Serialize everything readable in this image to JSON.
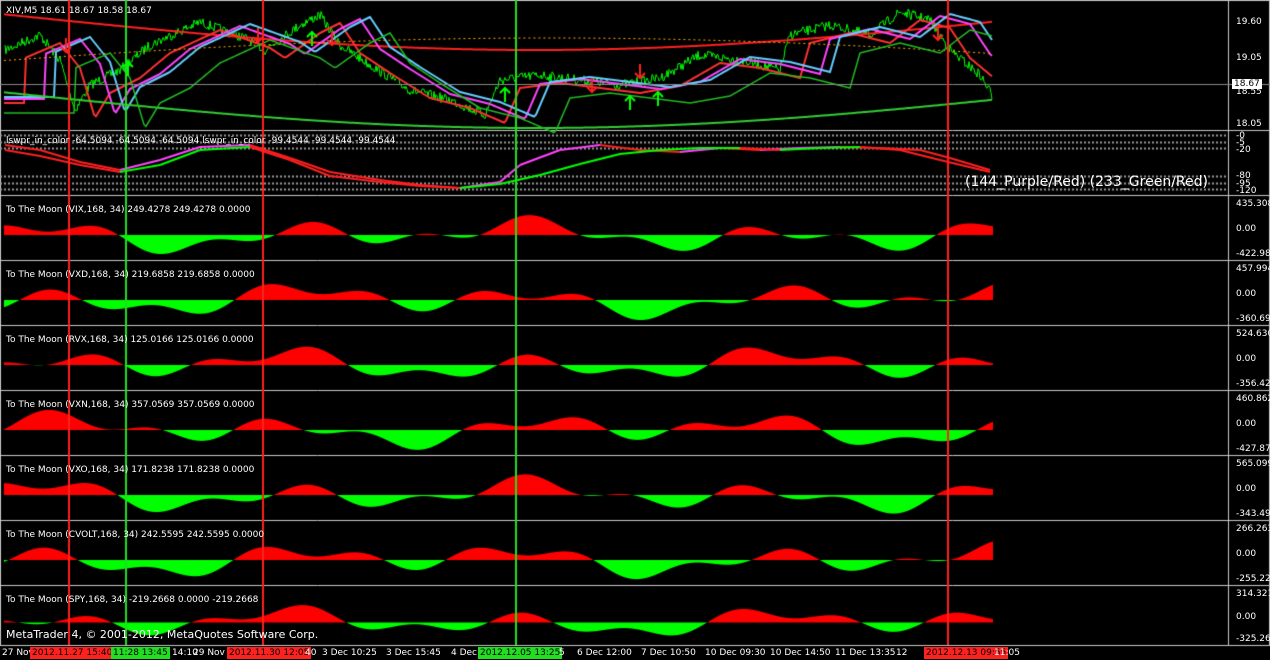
{
  "main": {
    "title": "XIV,M5 18.61 18.67 18.58 18.67",
    "price_labels": [
      "19.60",
      "19.05",
      "18.55",
      "18.05"
    ],
    "current_price": "18.67"
  },
  "wpr": {
    "title": "lswpr_in_color -64.5094 -64.5094 -64.5094  lswpr_in_color -99.4544 -99.4544 -99.4544",
    "scale_labels": [
      "-0",
      "-5",
      "-20",
      "-80",
      "-95",
      "-120"
    ],
    "legend": "(144_Purple/Red)  (233_Green/Red)"
  },
  "panes": [
    {
      "title": "To The Moon (VIX,168, 34) 249.4278 249.4278 0.0000",
      "top": "435.308",
      "mid": "0.00",
      "bot": "-422.981"
    },
    {
      "title": "To The Moon (VXD,168, 34) 219.6858 219.6858 0.0000",
      "top": "457.994",
      "mid": "0.00",
      "bot": "-360.691"
    },
    {
      "title": "To The Moon (RVX,168, 34) 125.0166 125.0166 0.0000",
      "top": "524.630",
      "mid": "0.00",
      "bot": "-356.429"
    },
    {
      "title": "To The Moon (VXN,168, 34) 357.0569 357.0569 0.0000",
      "top": "460.862",
      "mid": "0.00",
      "bot": "-427.870"
    },
    {
      "title": "To The Moon (VXO,168, 34) 171.8238 171.8238 0.0000",
      "top": "565.099",
      "mid": "0.00",
      "bot": "-343.499"
    },
    {
      "title": "To The Moon (CVOLT,168, 34) 242.5595 242.5595 0.0000",
      "top": "266.263",
      "mid": "0.00",
      "bot": "-255.221"
    },
    {
      "title": "To The Moon (SPY,168, 34) -219.2668 0.0000 -219.2668",
      "top": "314.321",
      "mid": "0.00",
      "bot": "-325.268"
    }
  ],
  "time_axis": [
    {
      "text": "27 Nov",
      "hl": ""
    },
    {
      "text": "2012.11.27 15:40",
      "hl": "#ff2020"
    },
    {
      "text": "11:28 13:45",
      "hl": "#22dd22"
    },
    {
      "text": "14:10",
      "hl": ""
    },
    {
      "text": "29 Nov",
      "hl": ""
    },
    {
      "text": "2012.11.30 12:05",
      "hl": "#ff2020"
    },
    {
      "text": "40",
      "hl": ""
    },
    {
      "text": "3 Dec 10:25",
      "hl": ""
    },
    {
      "text": "3 Dec 15:45",
      "hl": ""
    },
    {
      "text": "4 Dec",
      "hl": ""
    },
    {
      "text": "2012.12.05 13:25",
      "hl": "#22dd22"
    },
    {
      "text": "5",
      "hl": ""
    },
    {
      "text": "6 Dec 12:00",
      "hl": ""
    },
    {
      "text": "7 Dec 10:50",
      "hl": ""
    },
    {
      "text": "10 Dec 09:30",
      "hl": ""
    },
    {
      "text": "10 Dec 14:50",
      "hl": ""
    },
    {
      "text": "11 Dec 13:35",
      "hl": ""
    },
    {
      "text": "12",
      "hl": ""
    },
    {
      "text": "2012.12.13 09:55",
      "hl": "#ff2020"
    },
    {
      "text": "11:05",
      "hl": ""
    }
  ],
  "copyright": "MetaTrader 4, © 2001-2012, MetaQuotes Software Corp.",
  "colors": {
    "bull": "#00ff00",
    "bear": "#ff0000",
    "vline_red": "#ff2020",
    "vline_green": "#22dd22",
    "ma_blue": "#66ccff",
    "ma_magenta": "#ff44ff"
  }
}
